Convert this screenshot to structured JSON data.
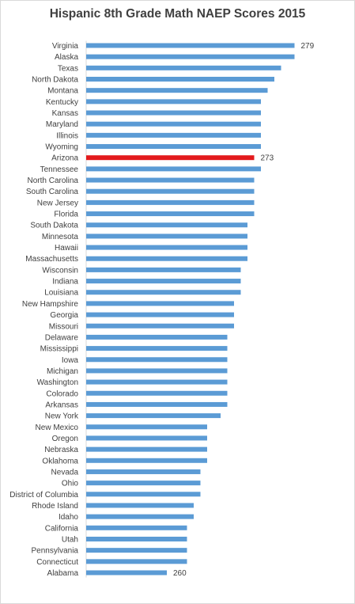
{
  "chart_data": {
    "type": "bar",
    "orientation": "horizontal",
    "title": "Hispanic 8th Grade Math NAEP Scores 2015",
    "xlabel": "",
    "ylabel": "",
    "grid": false,
    "legend": "none",
    "xlim": [
      248,
      280
    ],
    "bar_color": "#5b9bd5",
    "highlight_color": "#e31a1c",
    "highlight_category": "Arizona",
    "categories": [
      "Virginia",
      "Alaska",
      "Texas",
      "North Dakota",
      "Montana",
      "Kentucky",
      "Kansas",
      "Maryland",
      "Illinois",
      "Wyoming",
      "Arizona",
      "Tennessee",
      "North Carolina",
      "South Carolina",
      "New Jersey",
      "Florida",
      "South Dakota",
      "Minnesota",
      "Hawaii",
      "Massachusetts",
      "Wisconsin",
      "Indiana",
      "Louisiana",
      "New Hampshire",
      "Georgia",
      "Missouri",
      "Delaware",
      "Mississippi",
      "Iowa",
      "Michigan",
      "Washington",
      "Colorado",
      "Arkansas",
      "New York",
      "New Mexico",
      "Oregon",
      "Nebraska",
      "Oklahoma",
      "Nevada",
      "Ohio",
      "District of Columbia",
      "Rhode Island",
      "Idaho",
      "California",
      "Utah",
      "Pennsylvania",
      "Connecticut",
      "Alabama"
    ],
    "values": [
      279,
      279,
      277,
      276,
      275,
      274,
      274,
      274,
      274,
      274,
      273,
      274,
      273,
      273,
      273,
      273,
      272,
      272,
      272,
      272,
      271,
      271,
      271,
      270,
      270,
      270,
      269,
      269,
      269,
      269,
      269,
      269,
      269,
      268,
      266,
      266,
      266,
      266,
      265,
      265,
      265,
      264,
      264,
      263,
      263,
      263,
      263,
      260
    ],
    "data_labels": [
      {
        "category": "Virginia",
        "text": "279"
      },
      {
        "category": "Arizona",
        "text": "273"
      },
      {
        "category": "Alabama",
        "text": "260"
      }
    ]
  }
}
